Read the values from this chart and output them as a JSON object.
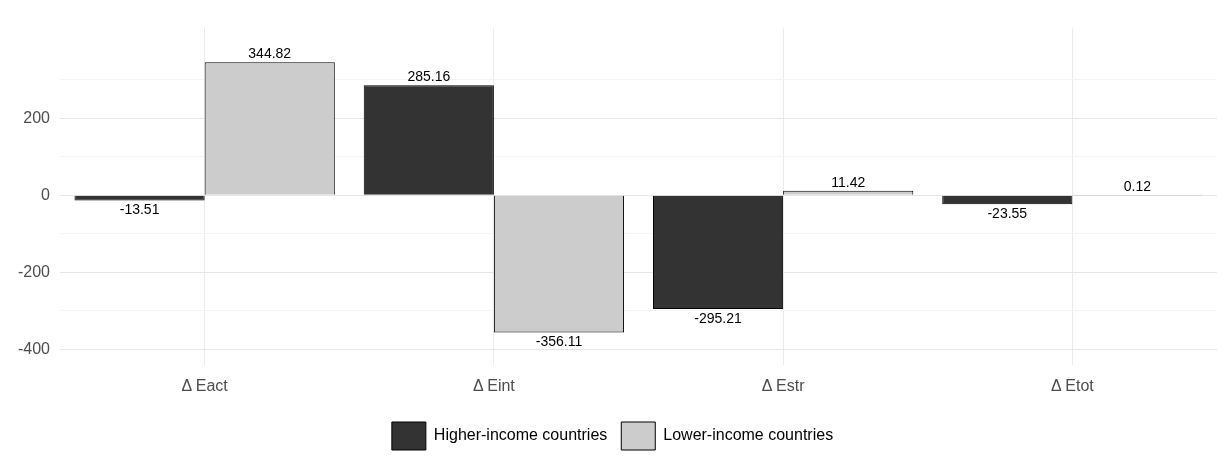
{
  "chart_data": {
    "type": "bar",
    "categories": [
      "Δ Eact",
      "Δ Eint",
      "Δ Estr",
      "Δ Etot"
    ],
    "series": [
      {
        "name": "Higher-income countries",
        "color": "#333333",
        "values": [
          -13.51,
          285.16,
          -295.21,
          -23.55
        ]
      },
      {
        "name": "Lower-income countries",
        "color": "#cccccc",
        "values": [
          344.82,
          -356.11,
          11.42,
          0.12
        ]
      }
    ],
    "ylim": [
      -440,
      435
    ],
    "yticks": [
      -400,
      {
        "value": -300,
        "label": null
      },
      -200,
      {
        "value": -100,
        "label": null
      },
      0,
      {
        "value": 100,
        "label": null
      },
      200,
      {
        "value": 300,
        "label": null
      }
    ],
    "grid": true,
    "legend": "bottom",
    "data_labels": true
  }
}
